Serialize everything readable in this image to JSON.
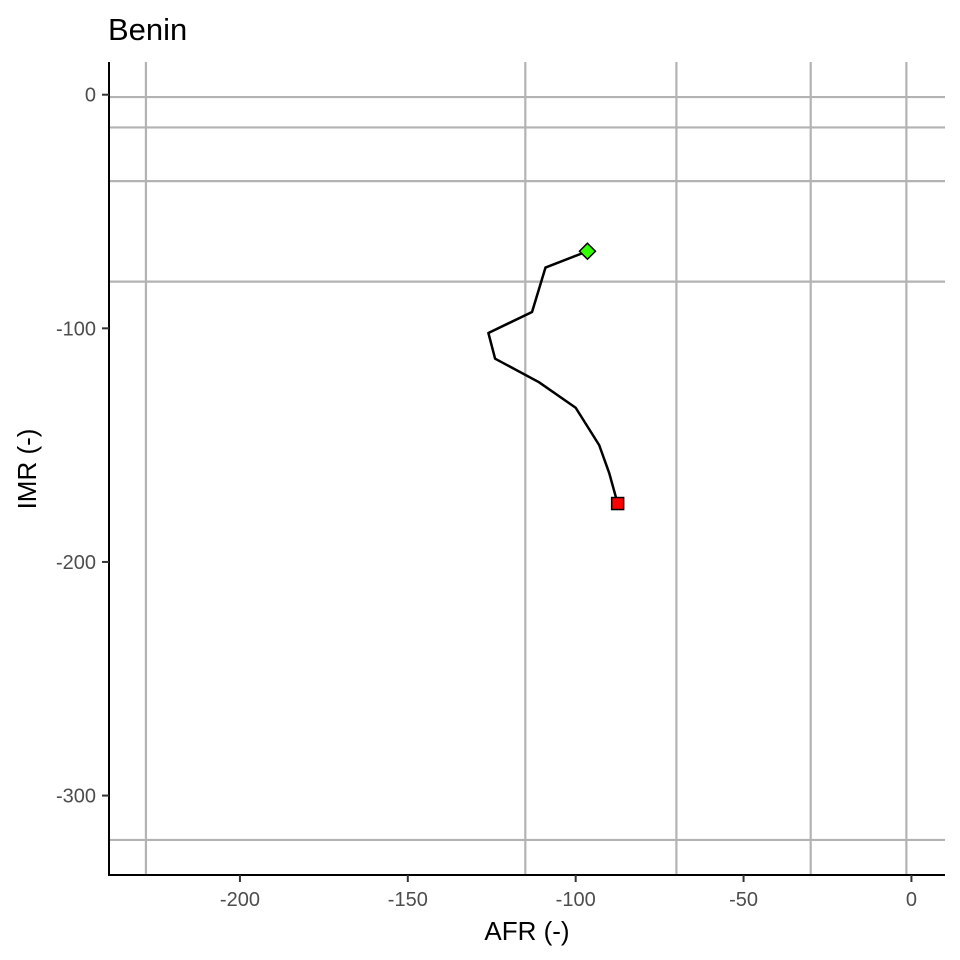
{
  "chart_data": {
    "type": "line",
    "title": "Benin",
    "xlabel": "AFR (-)",
    "ylabel": "IMR (-)",
    "xlim": [
      -239,
      10
    ],
    "ylim": [
      -334,
      14
    ],
    "x_ticks": [
      -200,
      -150,
      -100,
      -50,
      0
    ],
    "y_ticks": [
      0,
      -100,
      -200,
      -300
    ],
    "x_tick_labels": [
      "-200",
      "-150",
      "-100",
      "-50",
      "0"
    ],
    "y_tick_labels": [
      "0",
      "-100",
      "-200",
      "-300"
    ],
    "grid": {
      "vertical": [
        -228,
        -115,
        -70,
        -30,
        -1.5
      ],
      "horizontal": [
        -1,
        -14,
        -37,
        -80,
        -319
      ]
    },
    "series": [
      {
        "x": [
          -96.5,
          -109,
          -113,
          -126,
          -124,
          -111,
          -100,
          -93,
          -90,
          -87.5
        ],
        "y": [
          -67,
          -74,
          -93,
          -102,
          -113,
          -123,
          -134,
          -150,
          -162,
          -175
        ],
        "color": "#000000"
      }
    ],
    "markers": {
      "start": {
        "x": -96.5,
        "y": -67,
        "shape": "diamond",
        "color": "#33ff00"
      },
      "end": {
        "x": -87.5,
        "y": -175,
        "shape": "square",
        "color": "#ff0000"
      }
    }
  }
}
